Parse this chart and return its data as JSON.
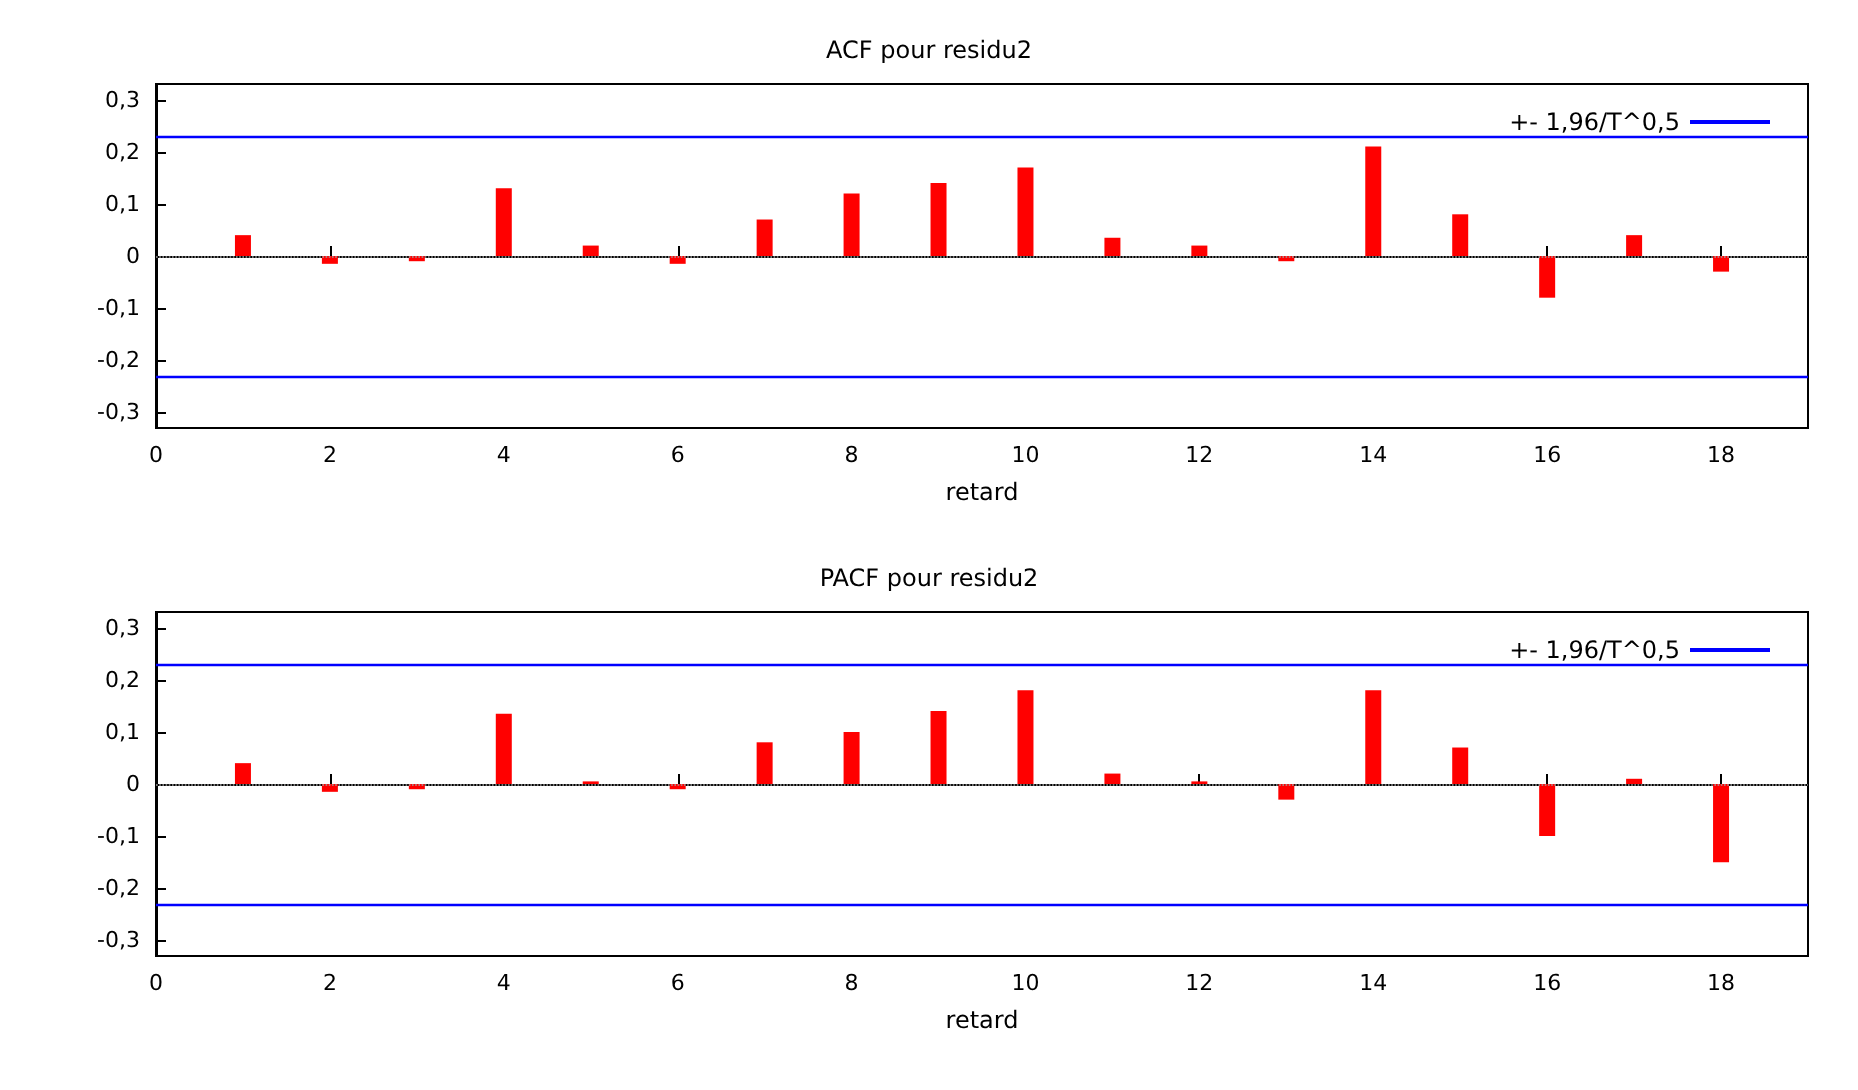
{
  "chart_data": [
    {
      "type": "bar",
      "title": "ACF pour residu2",
      "xlabel": "retard",
      "x": [
        1,
        2,
        3,
        4,
        5,
        6,
        7,
        8,
        9,
        10,
        11,
        12,
        13,
        14,
        15,
        16,
        17,
        18
      ],
      "series": [
        {
          "color": "#ff0000",
          "values": [
            0.04,
            -0.015,
            -0.01,
            0.13,
            0.02,
            -0.015,
            0.07,
            0.12,
            0.14,
            0.17,
            0.035,
            0.02,
            -0.01,
            0.21,
            0.08,
            -0.08,
            0.04,
            -0.03
          ]
        }
      ],
      "xlim": [
        0,
        19
      ],
      "xticks": [
        0,
        2,
        4,
        6,
        8,
        10,
        12,
        14,
        16,
        18
      ],
      "ylim": [
        -0.33,
        0.33
      ],
      "yticks": [
        {
          "value": -0.3,
          "label": "-0,3"
        },
        {
          "value": -0.2,
          "label": "-0,2"
        },
        {
          "value": -0.1,
          "label": "-0,1"
        },
        {
          "value": 0,
          "label": "0"
        },
        {
          "value": 0.1,
          "label": "0,1"
        },
        {
          "value": 0.2,
          "label": "0,2"
        },
        {
          "value": 0.3,
          "label": "0,3"
        }
      ],
      "ref_lines": [
        {
          "axis": "y",
          "value": 0,
          "color": "#a0a0a0",
          "line_style": "dotted"
        },
        {
          "axis": "y",
          "value": 0.23,
          "color": "#0000ff",
          "label": "+- 1,96/T^0,5"
        },
        {
          "axis": "y",
          "value": -0.23,
          "color": "#0000ff"
        }
      ],
      "legend": "top right",
      "grid": false
    },
    {
      "type": "bar",
      "title": "PACF pour residu2",
      "xlabel": "retard",
      "x": [
        1,
        2,
        3,
        4,
        5,
        6,
        7,
        8,
        9,
        10,
        11,
        12,
        13,
        14,
        15,
        16,
        17,
        18
      ],
      "series": [
        {
          "color": "#ff0000",
          "values": [
            0.04,
            -0.015,
            -0.01,
            0.135,
            0.005,
            -0.01,
            0.08,
            0.1,
            0.14,
            0.18,
            0.02,
            0.005,
            -0.03,
            0.18,
            0.07,
            -0.1,
            0.01,
            -0.15
          ]
        }
      ],
      "xlim": [
        0,
        19
      ],
      "xticks": [
        0,
        2,
        4,
        6,
        8,
        10,
        12,
        14,
        16,
        18
      ],
      "ylim": [
        -0.33,
        0.33
      ],
      "yticks": [
        {
          "value": -0.3,
          "label": "-0,3"
        },
        {
          "value": -0.2,
          "label": "-0,2"
        },
        {
          "value": -0.1,
          "label": "-0,1"
        },
        {
          "value": 0,
          "label": "0"
        },
        {
          "value": 0.1,
          "label": "0,1"
        },
        {
          "value": 0.2,
          "label": "0,2"
        },
        {
          "value": 0.3,
          "label": "0,3"
        }
      ],
      "ref_lines": [
        {
          "axis": "y",
          "value": 0,
          "color": "#a0a0a0",
          "line_style": "dotted"
        },
        {
          "axis": "y",
          "value": 0.23,
          "color": "#0000ff",
          "label": "+- 1,96/T^0,5"
        },
        {
          "axis": "y",
          "value": -0.23,
          "color": "#0000ff"
        }
      ],
      "legend": "top right",
      "grid": false
    }
  ]
}
